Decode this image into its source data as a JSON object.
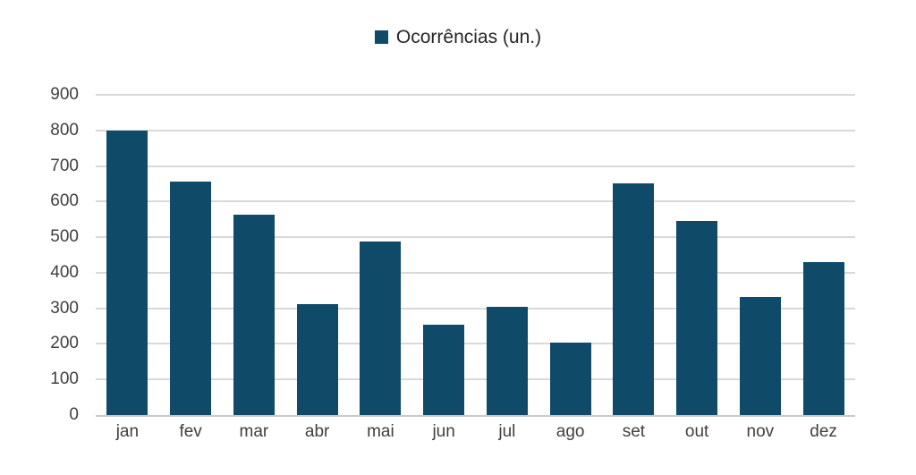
{
  "chart_data": {
    "type": "bar",
    "title": "",
    "legend": "Ocorrências (un.)",
    "legend_position": "top-center",
    "categories": [
      "jan",
      "fev",
      "mar",
      "abr",
      "mai",
      "jun",
      "jul",
      "ago",
      "set",
      "out",
      "nov",
      "dez"
    ],
    "values": [
      800,
      655,
      562,
      313,
      487,
      254,
      305,
      203,
      650,
      545,
      331,
      430
    ],
    "xlabel": "",
    "ylabel": "",
    "ylim": [
      0,
      900
    ],
    "yticks": [
      0,
      100,
      200,
      300,
      400,
      500,
      600,
      700,
      800,
      900
    ],
    "grid": true,
    "colors": {
      "bar": "#0f4a69",
      "gridline": "#d9d9d9",
      "axis_line": "#c9c9c9",
      "tick_label": "#404040",
      "legend_text": "#262626",
      "background": "#ffffff"
    }
  }
}
